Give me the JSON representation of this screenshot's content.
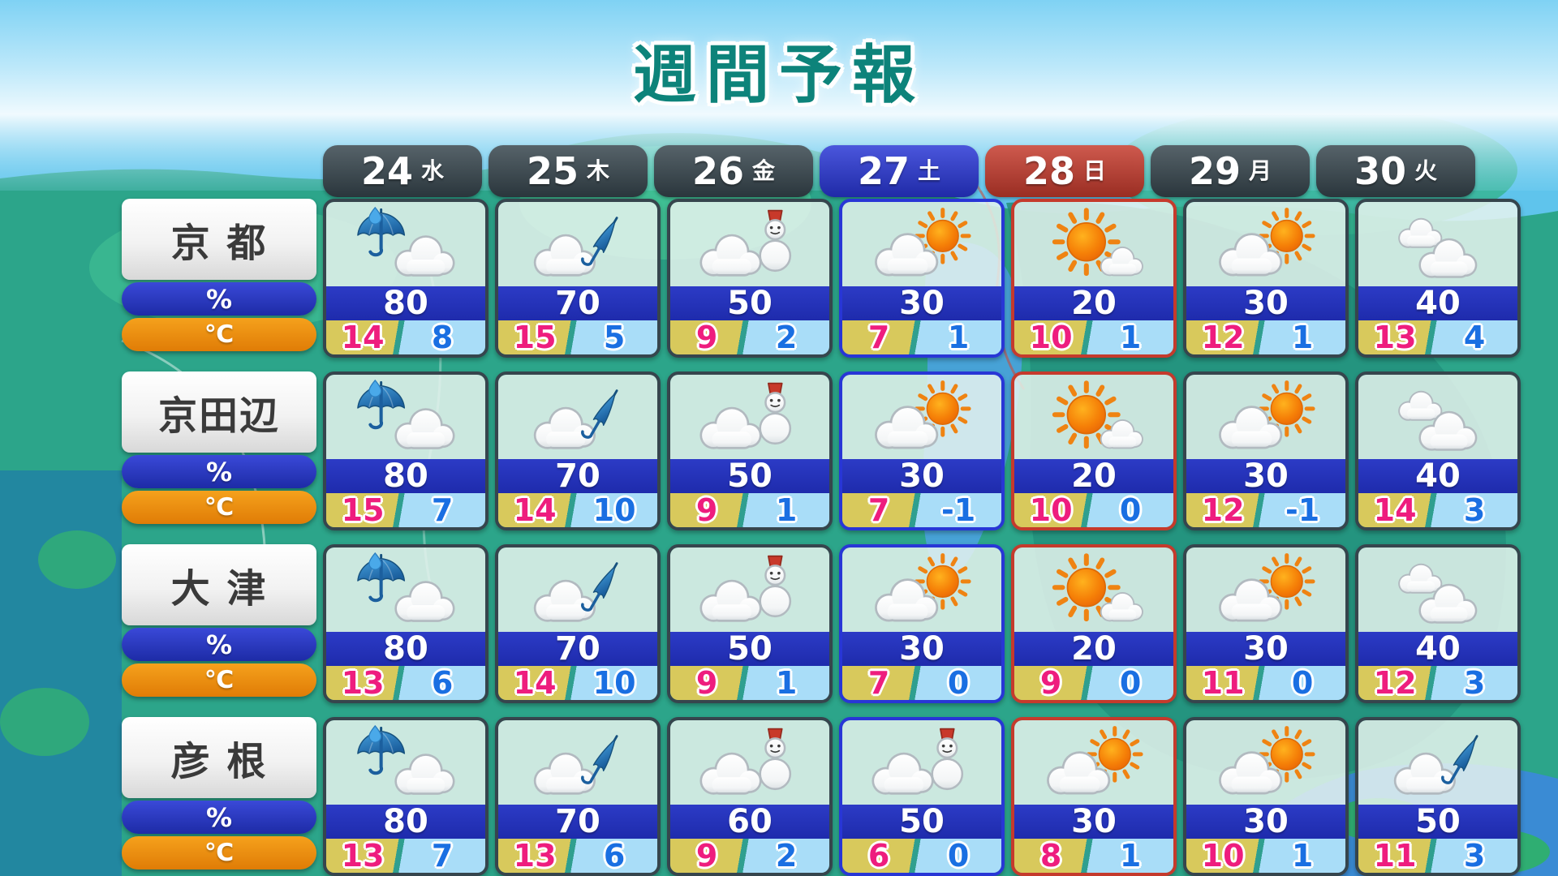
{
  "title": "週間予報",
  "labels": {
    "pop": "%",
    "temp": "℃"
  },
  "days": [
    {
      "date": "24",
      "dow": "水",
      "kind": "weekday"
    },
    {
      "date": "25",
      "dow": "木",
      "kind": "weekday"
    },
    {
      "date": "26",
      "dow": "金",
      "kind": "weekday"
    },
    {
      "date": "27",
      "dow": "土",
      "kind": "saturday"
    },
    {
      "date": "28",
      "dow": "日",
      "kind": "sunday"
    },
    {
      "date": "29",
      "dow": "月",
      "kind": "weekday"
    },
    {
      "date": "30",
      "dow": "火",
      "kind": "weekday"
    }
  ],
  "cities": [
    {
      "name": "京 都",
      "days": [
        {
          "icon": "rain-umbrella-cloud",
          "pop": "80",
          "high": "14",
          "low": "8"
        },
        {
          "icon": "cloud-closed-umbrella",
          "pop": "70",
          "high": "15",
          "low": "5"
        },
        {
          "icon": "cloud-snowman",
          "pop": "50",
          "high": "9",
          "low": "2"
        },
        {
          "icon": "sun-behind-cloud",
          "pop": "30",
          "high": "7",
          "low": "1"
        },
        {
          "icon": "sun-small-cloud",
          "pop": "20",
          "high": "10",
          "low": "1"
        },
        {
          "icon": "sun-behind-cloud",
          "pop": "30",
          "high": "12",
          "low": "1"
        },
        {
          "icon": "cloudy",
          "pop": "40",
          "high": "13",
          "low": "4"
        }
      ]
    },
    {
      "name": "京田辺",
      "days": [
        {
          "icon": "rain-umbrella-cloud",
          "pop": "80",
          "high": "15",
          "low": "7"
        },
        {
          "icon": "cloud-closed-umbrella",
          "pop": "70",
          "high": "14",
          "low": "10"
        },
        {
          "icon": "cloud-snowman",
          "pop": "50",
          "high": "9",
          "low": "1"
        },
        {
          "icon": "sun-behind-cloud",
          "pop": "30",
          "high": "7",
          "low": "-1"
        },
        {
          "icon": "sun-small-cloud",
          "pop": "20",
          "high": "10",
          "low": "0"
        },
        {
          "icon": "sun-behind-cloud",
          "pop": "30",
          "high": "12",
          "low": "-1"
        },
        {
          "icon": "cloudy",
          "pop": "40",
          "high": "14",
          "low": "3"
        }
      ]
    },
    {
      "name": "大 津",
      "days": [
        {
          "icon": "rain-umbrella-cloud",
          "pop": "80",
          "high": "13",
          "low": "6"
        },
        {
          "icon": "cloud-closed-umbrella",
          "pop": "70",
          "high": "14",
          "low": "10"
        },
        {
          "icon": "cloud-snowman",
          "pop": "50",
          "high": "9",
          "low": "1"
        },
        {
          "icon": "sun-behind-cloud",
          "pop": "30",
          "high": "7",
          "low": "0"
        },
        {
          "icon": "sun-small-cloud",
          "pop": "20",
          "high": "9",
          "low": "0"
        },
        {
          "icon": "sun-behind-cloud",
          "pop": "30",
          "high": "11",
          "low": "0"
        },
        {
          "icon": "cloudy",
          "pop": "40",
          "high": "12",
          "low": "3"
        }
      ]
    },
    {
      "name": "彦 根",
      "days": [
        {
          "icon": "rain-umbrella-cloud",
          "pop": "80",
          "high": "13",
          "low": "7"
        },
        {
          "icon": "cloud-closed-umbrella",
          "pop": "70",
          "high": "13",
          "low": "6"
        },
        {
          "icon": "cloud-snowman",
          "pop": "60",
          "high": "9",
          "low": "2"
        },
        {
          "icon": "cloud-snowman",
          "pop": "50",
          "high": "6",
          "low": "0"
        },
        {
          "icon": "sun-behind-cloud",
          "pop": "30",
          "high": "8",
          "low": "1"
        },
        {
          "icon": "sun-behind-cloud",
          "pop": "30",
          "high": "10",
          "low": "1"
        },
        {
          "icon": "cloud-closed-umbrella",
          "pop": "50",
          "high": "11",
          "low": "3"
        }
      ]
    }
  ],
  "colors": {
    "day_kinds": {
      "weekday": "#36454d",
      "saturday": "#2836d6",
      "sunday": "#c53a2c"
    },
    "pop_bar_blue": "#2433bb",
    "temp_high_pink": "#ee1d7e",
    "temp_low_blue": "#1a6fe2",
    "temp_bg_yellow": "#d8c95c",
    "temp_bg_lightblue": "#a9ddf8",
    "pop_pill_blue": "#2836c4",
    "temp_pill_orange": "#ef8d0e",
    "title_teal": "#0d837a",
    "map_land_green": "#2ca58a",
    "map_sea_blue": "#5fc4ec"
  },
  "chart_data": {
    "type": "table",
    "title": "週間予報",
    "columns": [
      "24水",
      "25木",
      "26金",
      "27土",
      "28日",
      "29月",
      "30火"
    ],
    "row_units": {
      "pop_percent": "%",
      "high_c": "℃",
      "low_c": "℃"
    },
    "rows": [
      {
        "city": "京都",
        "pop_percent": [
          80,
          70,
          50,
          30,
          20,
          30,
          40
        ],
        "high_c": [
          14,
          15,
          9,
          7,
          10,
          12,
          13
        ],
        "low_c": [
          8,
          5,
          2,
          1,
          1,
          1,
          4
        ]
      },
      {
        "city": "京田辺",
        "pop_percent": [
          80,
          70,
          50,
          30,
          20,
          30,
          40
        ],
        "high_c": [
          15,
          14,
          9,
          7,
          10,
          12,
          14
        ],
        "low_c": [
          7,
          10,
          1,
          -1,
          0,
          -1,
          3
        ]
      },
      {
        "city": "大津",
        "pop_percent": [
          80,
          70,
          50,
          30,
          20,
          30,
          40
        ],
        "high_c": [
          13,
          14,
          9,
          7,
          9,
          11,
          12
        ],
        "low_c": [
          6,
          10,
          1,
          0,
          0,
          0,
          3
        ]
      },
      {
        "city": "彦根",
        "pop_percent": [
          80,
          70,
          60,
          50,
          30,
          30,
          50
        ],
        "high_c": [
          13,
          13,
          9,
          6,
          8,
          10,
          11
        ],
        "low_c": [
          7,
          6,
          2,
          0,
          1,
          1,
          3
        ]
      }
    ]
  }
}
